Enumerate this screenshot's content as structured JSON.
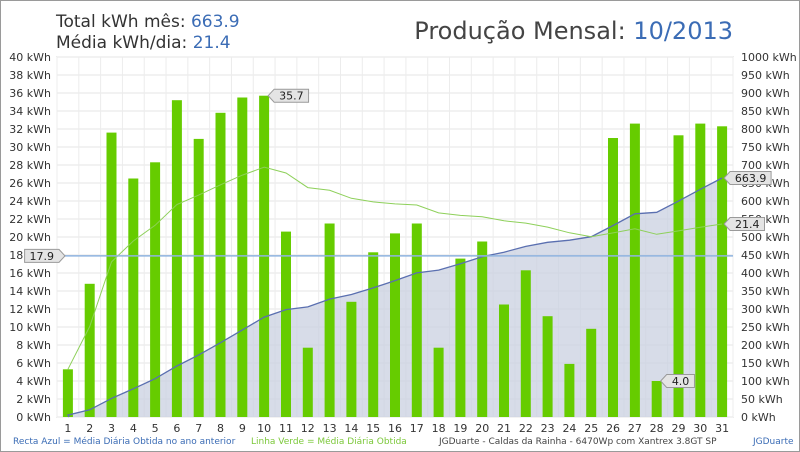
{
  "header": {
    "total_label": "Total kWh mês:",
    "total_value": "663.9",
    "avg_label": "Média kWh/dia:",
    "avg_value": "21.4",
    "title": "Produção Mensal:",
    "period": "10/2013"
  },
  "footer": {
    "blue_legend": "Recta Azul = Média Diária Obtida no ano anterior",
    "green_legend": "Linha Verde = Média Diária Obtida",
    "site": "JGDuarte  -  Caldas da Rainha  -  6470Wp com Xantrex 3.8GT SP",
    "brand": "JGDuarte"
  },
  "colors": {
    "bar": "#66cc00",
    "green_line": "#8ed05a",
    "blue_line": "#5a6fb0",
    "area_fill": "#c9d0e0",
    "ref_line": "#8fb4e0"
  },
  "chart_data": {
    "type": "bar",
    "categories": [
      "1",
      "2",
      "3",
      "4",
      "5",
      "6",
      "7",
      "8",
      "9",
      "10",
      "11",
      "12",
      "13",
      "14",
      "15",
      "16",
      "17",
      "18",
      "19",
      "20",
      "21",
      "22",
      "23",
      "24",
      "25",
      "26",
      "27",
      "28",
      "29",
      "30",
      "31"
    ],
    "series": [
      {
        "values": [
          5.3,
          14.8,
          31.6,
          26.5,
          28.3,
          35.2,
          30.9,
          33.8,
          35.5,
          35.7,
          20.6,
          7.7,
          21.5,
          12.8,
          18.3,
          20.4,
          21.5,
          7.7,
          17.6,
          19.5,
          12.5,
          16.3,
          11.2,
          5.9,
          9.8,
          31.0,
          32.6,
          4.0,
          31.3,
          32.6,
          32.3
        ]
      }
    ],
    "cumulative": [
      5.3,
      20.1,
      51.7,
      78.2,
      106.5,
      141.7,
      172.6,
      206.4,
      241.9,
      277.6,
      298.2,
      305.9,
      327.4,
      340.2,
      358.5,
      378.9,
      400.4,
      408.1,
      425.7,
      445.2,
      457.7,
      474.0,
      485.2,
      491.1,
      500.9,
      531.9,
      564.5,
      568.5,
      599.8,
      632.4,
      663.9
    ],
    "ref_value": 17.9,
    "annotations": {
      "max_label": "35.7",
      "min_label": "4.0",
      "ref_label": "17.9",
      "total_label": "663.9",
      "avg_label": "21.4"
    },
    "y_left": {
      "min": 0,
      "max": 40,
      "step": 2,
      "unit": "kWh"
    },
    "y_right": {
      "min": 0,
      "max": 1000,
      "step": 50,
      "unit": "kWh"
    },
    "grid": true
  }
}
